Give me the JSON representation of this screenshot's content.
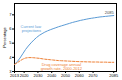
{
  "chart_data": {
    "type": "line",
    "x": [
      2013,
      2015,
      2017,
      2019,
      2021,
      2023,
      2025,
      2027,
      2029,
      2031,
      2033,
      2035,
      2037,
      2039,
      2041,
      2043,
      2045,
      2047,
      2049,
      2051,
      2053,
      2055,
      2057,
      2059,
      2061,
      2063,
      2065,
      2067,
      2069,
      2071,
      2073,
      2075,
      2077,
      2079,
      2081,
      2083,
      2085
    ],
    "series": [
      {
        "name": "Current law\nprojections",
        "color": "#5b9bd5",
        "line_style": "solid",
        "values": [
          3.5,
          3.7,
          3.95,
          4.25,
          4.55,
          4.8,
          5.02,
          5.22,
          5.4,
          5.55,
          5.67,
          5.78,
          5.87,
          5.95,
          6.02,
          6.09,
          6.16,
          6.22,
          6.28,
          6.34,
          6.4,
          6.46,
          6.51,
          6.56,
          6.61,
          6.65,
          6.69,
          6.73,
          6.76,
          6.79,
          6.82,
          6.85,
          6.87,
          6.89,
          6.91,
          6.93,
          6.95
        ]
      },
      {
        "name": "Drug coverage annual\ngrowth rate, 2000-2012",
        "color": "#ed7d31",
        "line_style": "dashed",
        "values": [
          3.5,
          3.62,
          3.75,
          3.87,
          3.95,
          3.98,
          3.98,
          3.97,
          3.95,
          3.93,
          3.9,
          3.87,
          3.85,
          3.83,
          3.81,
          3.79,
          3.77,
          3.76,
          3.75,
          3.74,
          3.73,
          3.72,
          3.71,
          3.7,
          3.69,
          3.69,
          3.68,
          3.68,
          3.67,
          3.67,
          3.67,
          3.66,
          3.66,
          3.66,
          3.65,
          3.65,
          3.65
        ]
      }
    ],
    "ylabel": "Percentage",
    "xlim": [
      2013,
      2087
    ],
    "xticks": [
      2013,
      2020,
      2030,
      2040,
      2050,
      2060,
      2070,
      2085
    ],
    "ylim": [
      3.0,
      7.8
    ],
    "yticks": [
      3,
      4,
      5,
      6,
      7
    ],
    "annotations": [
      "2085"
    ],
    "grid": false
  }
}
